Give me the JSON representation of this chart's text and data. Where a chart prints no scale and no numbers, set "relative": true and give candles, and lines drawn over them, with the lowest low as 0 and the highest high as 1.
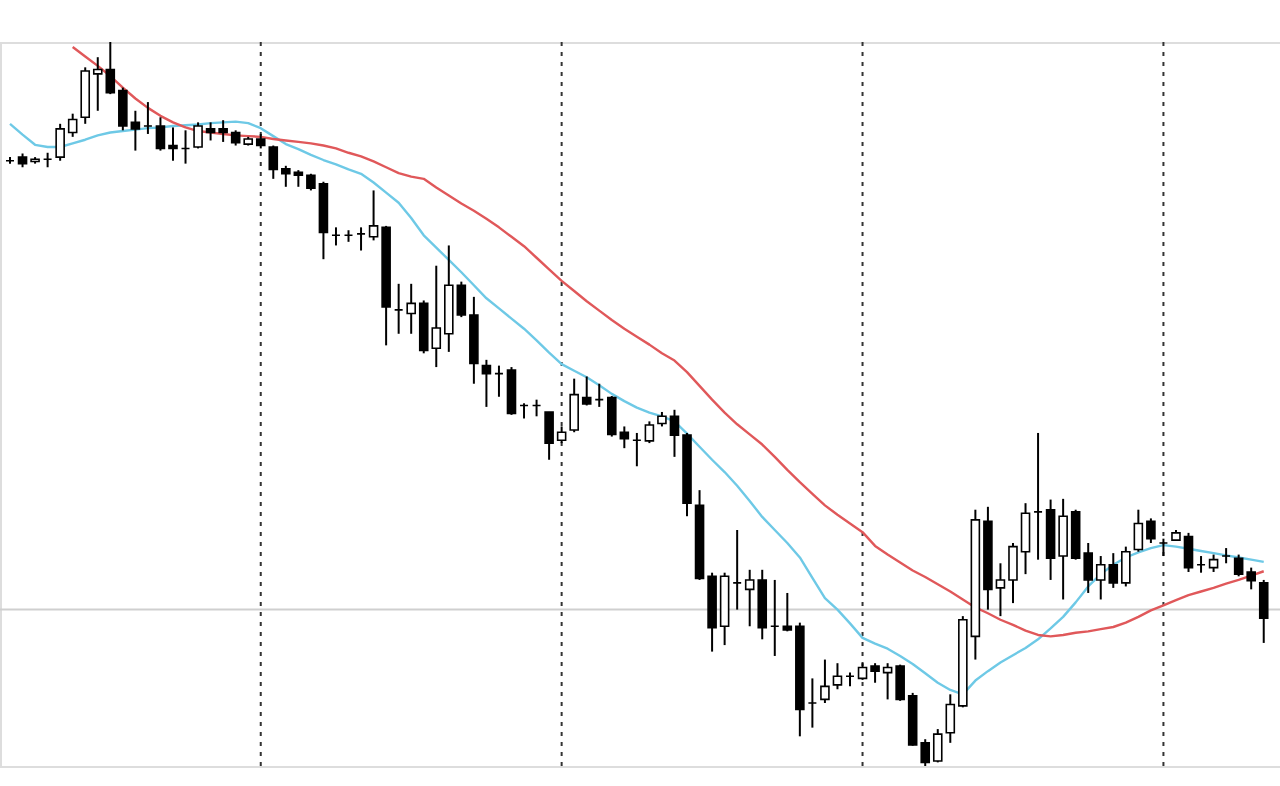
{
  "chart_data": {
    "type": "candlestick",
    "relative": true,
    "grid": "x",
    "categories": [
      null,
      null,
      null,
      null,
      null,
      null,
      null,
      null,
      null,
      null,
      null,
      null,
      null,
      null,
      null,
      null,
      null,
      null,
      null,
      null,
      null,
      null,
      null,
      null,
      null,
      null,
      null,
      null,
      null,
      null,
      null,
      null,
      null,
      null,
      null,
      null,
      null,
      null,
      null,
      null,
      null,
      null,
      null,
      null,
      null,
      null,
      null,
      null,
      null,
      null,
      null,
      null,
      null,
      null,
      null,
      null,
      null,
      null,
      null,
      null,
      null,
      null,
      null,
      null,
      null,
      null,
      null,
      null,
      null,
      null,
      null,
      null,
      null,
      null,
      null,
      null,
      null,
      null,
      null,
      null,
      null,
      null,
      null,
      null,
      null,
      null,
      null,
      null,
      null,
      null,
      null,
      null,
      null,
      null,
      null,
      null,
      null,
      null,
      null,
      null,
      null
    ],
    "ohlc": [
      [
        0.836,
        0.841,
        0.832,
        0.836
      ],
      [
        0.841,
        0.846,
        0.827,
        0.832
      ],
      [
        0.835,
        0.841,
        0.832,
        0.838
      ],
      [
        0.838,
        0.847,
        0.827,
        0.838
      ],
      [
        0.841,
        0.887,
        0.836,
        0.88
      ],
      [
        0.875,
        0.901,
        0.869,
        0.893
      ],
      [
        0.896,
        0.965,
        0.887,
        0.96
      ],
      [
        0.956,
        0.979,
        0.905,
        0.962
      ],
      [
        0.962,
        1.0,
        0.928,
        0.93
      ],
      [
        0.933,
        0.937,
        0.878,
        0.884
      ],
      [
        0.889,
        0.905,
        0.85,
        0.88
      ],
      [
        0.884,
        0.917,
        0.873,
        0.884
      ],
      [
        0.884,
        0.896,
        0.85,
        0.853
      ],
      [
        0.857,
        0.882,
        0.836,
        0.853
      ],
      [
        0.853,
        0.878,
        0.832,
        0.853
      ],
      [
        0.855,
        0.889,
        0.853,
        0.884
      ],
      [
        0.88,
        0.889,
        0.864,
        0.875
      ],
      [
        0.88,
        0.892,
        0.862,
        0.875
      ],
      [
        0.875,
        0.878,
        0.857,
        0.861
      ],
      [
        0.859,
        0.869,
        0.857,
        0.866
      ],
      [
        0.866,
        0.873,
        0.853,
        0.857
      ],
      [
        0.855,
        0.857,
        0.811,
        0.824
      ],
      [
        0.825,
        0.829,
        0.8,
        0.818
      ],
      [
        0.82,
        0.823,
        0.8,
        0.816
      ],
      [
        0.816,
        0.818,
        0.795,
        0.798
      ],
      [
        0.804,
        0.807,
        0.7,
        0.737
      ],
      [
        0.733,
        0.744,
        0.719,
        0.733
      ],
      [
        0.733,
        0.74,
        0.724,
        0.733
      ],
      [
        0.735,
        0.744,
        0.712,
        0.735
      ],
      [
        0.731,
        0.795,
        0.726,
        0.746
      ],
      [
        0.744,
        0.746,
        0.581,
        0.634
      ],
      [
        0.63,
        0.666,
        0.597,
        0.63
      ],
      [
        0.625,
        0.666,
        0.597,
        0.639
      ],
      [
        0.639,
        0.643,
        0.57,
        0.574
      ],
      [
        0.577,
        0.691,
        0.551,
        0.605
      ],
      [
        0.597,
        0.719,
        0.572,
        0.664
      ],
      [
        0.664,
        0.669,
        0.62,
        0.623
      ],
      [
        0.623,
        0.648,
        0.528,
        0.556
      ],
      [
        0.553,
        0.561,
        0.496,
        0.542
      ],
      [
        0.542,
        0.553,
        0.51,
        0.542
      ],
      [
        0.547,
        0.551,
        0.485,
        0.487
      ],
      [
        0.498,
        0.501,
        0.48,
        0.498
      ],
      [
        0.498,
        0.506,
        0.483,
        0.498
      ],
      [
        0.489,
        0.489,
        0.423,
        0.446
      ],
      [
        0.45,
        0.469,
        0.446,
        0.461
      ],
      [
        0.464,
        0.535,
        0.461,
        0.513
      ],
      [
        0.509,
        0.538,
        0.498,
        0.5
      ],
      [
        0.506,
        0.528,
        0.496,
        0.506
      ],
      [
        0.509,
        0.511,
        0.455,
        0.458
      ],
      [
        0.461,
        0.469,
        0.439,
        0.452
      ],
      [
        0.45,
        0.46,
        0.414,
        0.45
      ],
      [
        0.449,
        0.476,
        0.446,
        0.471
      ],
      [
        0.473,
        0.489,
        0.469,
        0.483
      ],
      [
        0.483,
        0.492,
        0.427,
        0.457
      ],
      [
        0.457,
        0.46,
        0.345,
        0.363
      ],
      [
        0.36,
        0.381,
        0.257,
        0.259
      ],
      [
        0.262,
        0.267,
        0.158,
        0.191
      ],
      [
        0.193,
        0.267,
        0.167,
        0.262
      ],
      [
        0.253,
        0.326,
        0.216,
        0.253
      ],
      [
        0.244,
        0.271,
        0.193,
        0.257
      ],
      [
        0.257,
        0.271,
        0.175,
        0.191
      ],
      [
        0.193,
        0.257,
        0.152,
        0.193
      ],
      [
        0.193,
        0.239,
        0.186,
        0.188
      ],
      [
        0.193,
        0.198,
        0.041,
        0.078
      ],
      [
        0.087,
        0.121,
        0.053,
        0.087
      ],
      [
        0.092,
        0.147,
        0.087,
        0.11
      ],
      [
        0.112,
        0.142,
        0.106,
        0.124
      ],
      [
        0.124,
        0.129,
        0.11,
        0.124
      ],
      [
        0.121,
        0.142,
        0.119,
        0.136
      ],
      [
        0.138,
        0.142,
        0.115,
        0.131
      ],
      [
        0.129,
        0.142,
        0.092,
        0.136
      ],
      [
        0.138,
        0.14,
        0.09,
        0.092
      ],
      [
        0.097,
        0.101,
        0.028,
        0.029
      ],
      [
        0.032,
        0.037,
        0.0,
        0.005
      ],
      [
        0.007,
        0.051,
        0.005,
        0.044
      ],
      [
        0.046,
        0.099,
        0.032,
        0.085
      ],
      [
        0.083,
        0.207,
        0.081,
        0.202
      ],
      [
        0.179,
        0.354,
        0.147,
        0.34
      ],
      [
        0.338,
        0.358,
        0.216,
        0.244
      ],
      [
        0.246,
        0.28,
        0.207,
        0.257
      ],
      [
        0.257,
        0.308,
        0.225,
        0.303
      ],
      [
        0.296,
        0.363,
        0.265,
        0.349
      ],
      [
        0.351,
        0.46,
        0.285,
        0.351
      ],
      [
        0.354,
        0.368,
        0.257,
        0.287
      ],
      [
        0.29,
        0.369,
        0.23,
        0.345
      ],
      [
        0.351,
        0.354,
        0.285,
        0.287
      ],
      [
        0.294,
        0.308,
        0.239,
        0.257
      ],
      [
        0.257,
        0.29,
        0.23,
        0.278
      ],
      [
        0.278,
        0.294,
        0.246,
        0.253
      ],
      [
        0.253,
        0.303,
        0.248,
        0.296
      ],
      [
        0.299,
        0.354,
        0.296,
        0.335
      ],
      [
        0.338,
        0.342,
        0.308,
        0.314
      ],
      [
        0.308,
        0.314,
        0.29,
        0.308
      ],
      [
        0.312,
        0.326,
        0.311,
        0.322
      ],
      [
        0.317,
        0.322,
        0.268,
        0.274
      ],
      [
        0.278,
        0.29,
        0.267,
        0.278
      ],
      [
        0.274,
        0.292,
        0.268,
        0.285
      ],
      [
        0.29,
        0.301,
        0.28,
        0.29
      ],
      [
        0.287,
        0.292,
        0.262,
        0.265
      ],
      [
        0.268,
        0.274,
        0.244,
        0.256
      ],
      [
        0.253,
        0.257,
        0.17,
        0.204
      ]
    ],
    "series": [
      {
        "type": "line",
        "color": "#6ec9e6",
        "values": [
          0.887,
          0.872,
          0.858,
          0.855,
          0.855,
          0.86,
          0.865,
          0.871,
          0.875,
          0.877,
          0.879,
          0.881,
          0.882,
          0.884,
          0.885,
          0.886,
          0.888,
          0.889,
          0.89,
          0.888,
          0.881,
          0.87,
          0.859,
          0.852,
          0.844,
          0.837,
          0.831,
          0.824,
          0.818,
          0.806,
          0.792,
          0.778,
          0.757,
          0.733,
          0.716,
          0.699,
          0.682,
          0.664,
          0.646,
          0.632,
          0.618,
          0.604,
          0.588,
          0.571,
          0.555,
          0.546,
          0.537,
          0.526,
          0.514,
          0.504,
          0.495,
          0.488,
          0.483,
          0.476,
          0.459,
          0.441,
          0.423,
          0.406,
          0.387,
          0.366,
          0.344,
          0.326,
          0.308,
          0.288,
          0.26,
          0.232,
          0.216,
          0.197,
          0.177,
          0.169,
          0.162,
          0.152,
          0.141,
          0.128,
          0.115,
          0.105,
          0.099,
          0.118,
          0.131,
          0.143,
          0.153,
          0.163,
          0.175,
          0.19,
          0.206,
          0.226,
          0.248,
          0.265,
          0.278,
          0.288,
          0.295,
          0.301,
          0.305,
          0.303,
          0.3,
          0.297,
          0.294,
          0.291,
          0.288,
          0.285,
          0.282
        ]
      },
      {
        "type": "line",
        "color": "#e0585a",
        "values": [
          null,
          null,
          null,
          null,
          null,
          0.993,
          0.98,
          0.967,
          0.953,
          0.937,
          0.922,
          0.909,
          0.898,
          0.889,
          0.882,
          0.877,
          0.875,
          0.873,
          0.871,
          0.87,
          0.869,
          0.866,
          0.864,
          0.862,
          0.86,
          0.857,
          0.853,
          0.847,
          0.842,
          0.835,
          0.827,
          0.819,
          0.814,
          0.811,
          0.799,
          0.788,
          0.777,
          0.767,
          0.756,
          0.744,
          0.731,
          0.718,
          0.702,
          0.686,
          0.67,
          0.656,
          0.642,
          0.629,
          0.616,
          0.604,
          0.593,
          0.582,
          0.57,
          0.56,
          0.544,
          0.525,
          0.506,
          0.488,
          0.472,
          0.458,
          0.444,
          0.427,
          0.409,
          0.392,
          0.376,
          0.36,
          0.347,
          0.335,
          0.323,
          0.304,
          0.292,
          0.281,
          0.27,
          0.261,
          0.251,
          0.241,
          0.23,
          0.219,
          0.211,
          0.202,
          0.195,
          0.187,
          0.181,
          0.179,
          0.181,
          0.184,
          0.186,
          0.189,
          0.192,
          0.198,
          0.206,
          0.215,
          0.222,
          0.229,
          0.236,
          0.241,
          0.246,
          0.252,
          0.257,
          0.263,
          0.269
        ]
      }
    ],
    "ref_lines": [
      {
        "axis": "y",
        "value": 0.216,
        "color": "#cfcfcf",
        "line_style": "solid"
      }
    ]
  }
}
